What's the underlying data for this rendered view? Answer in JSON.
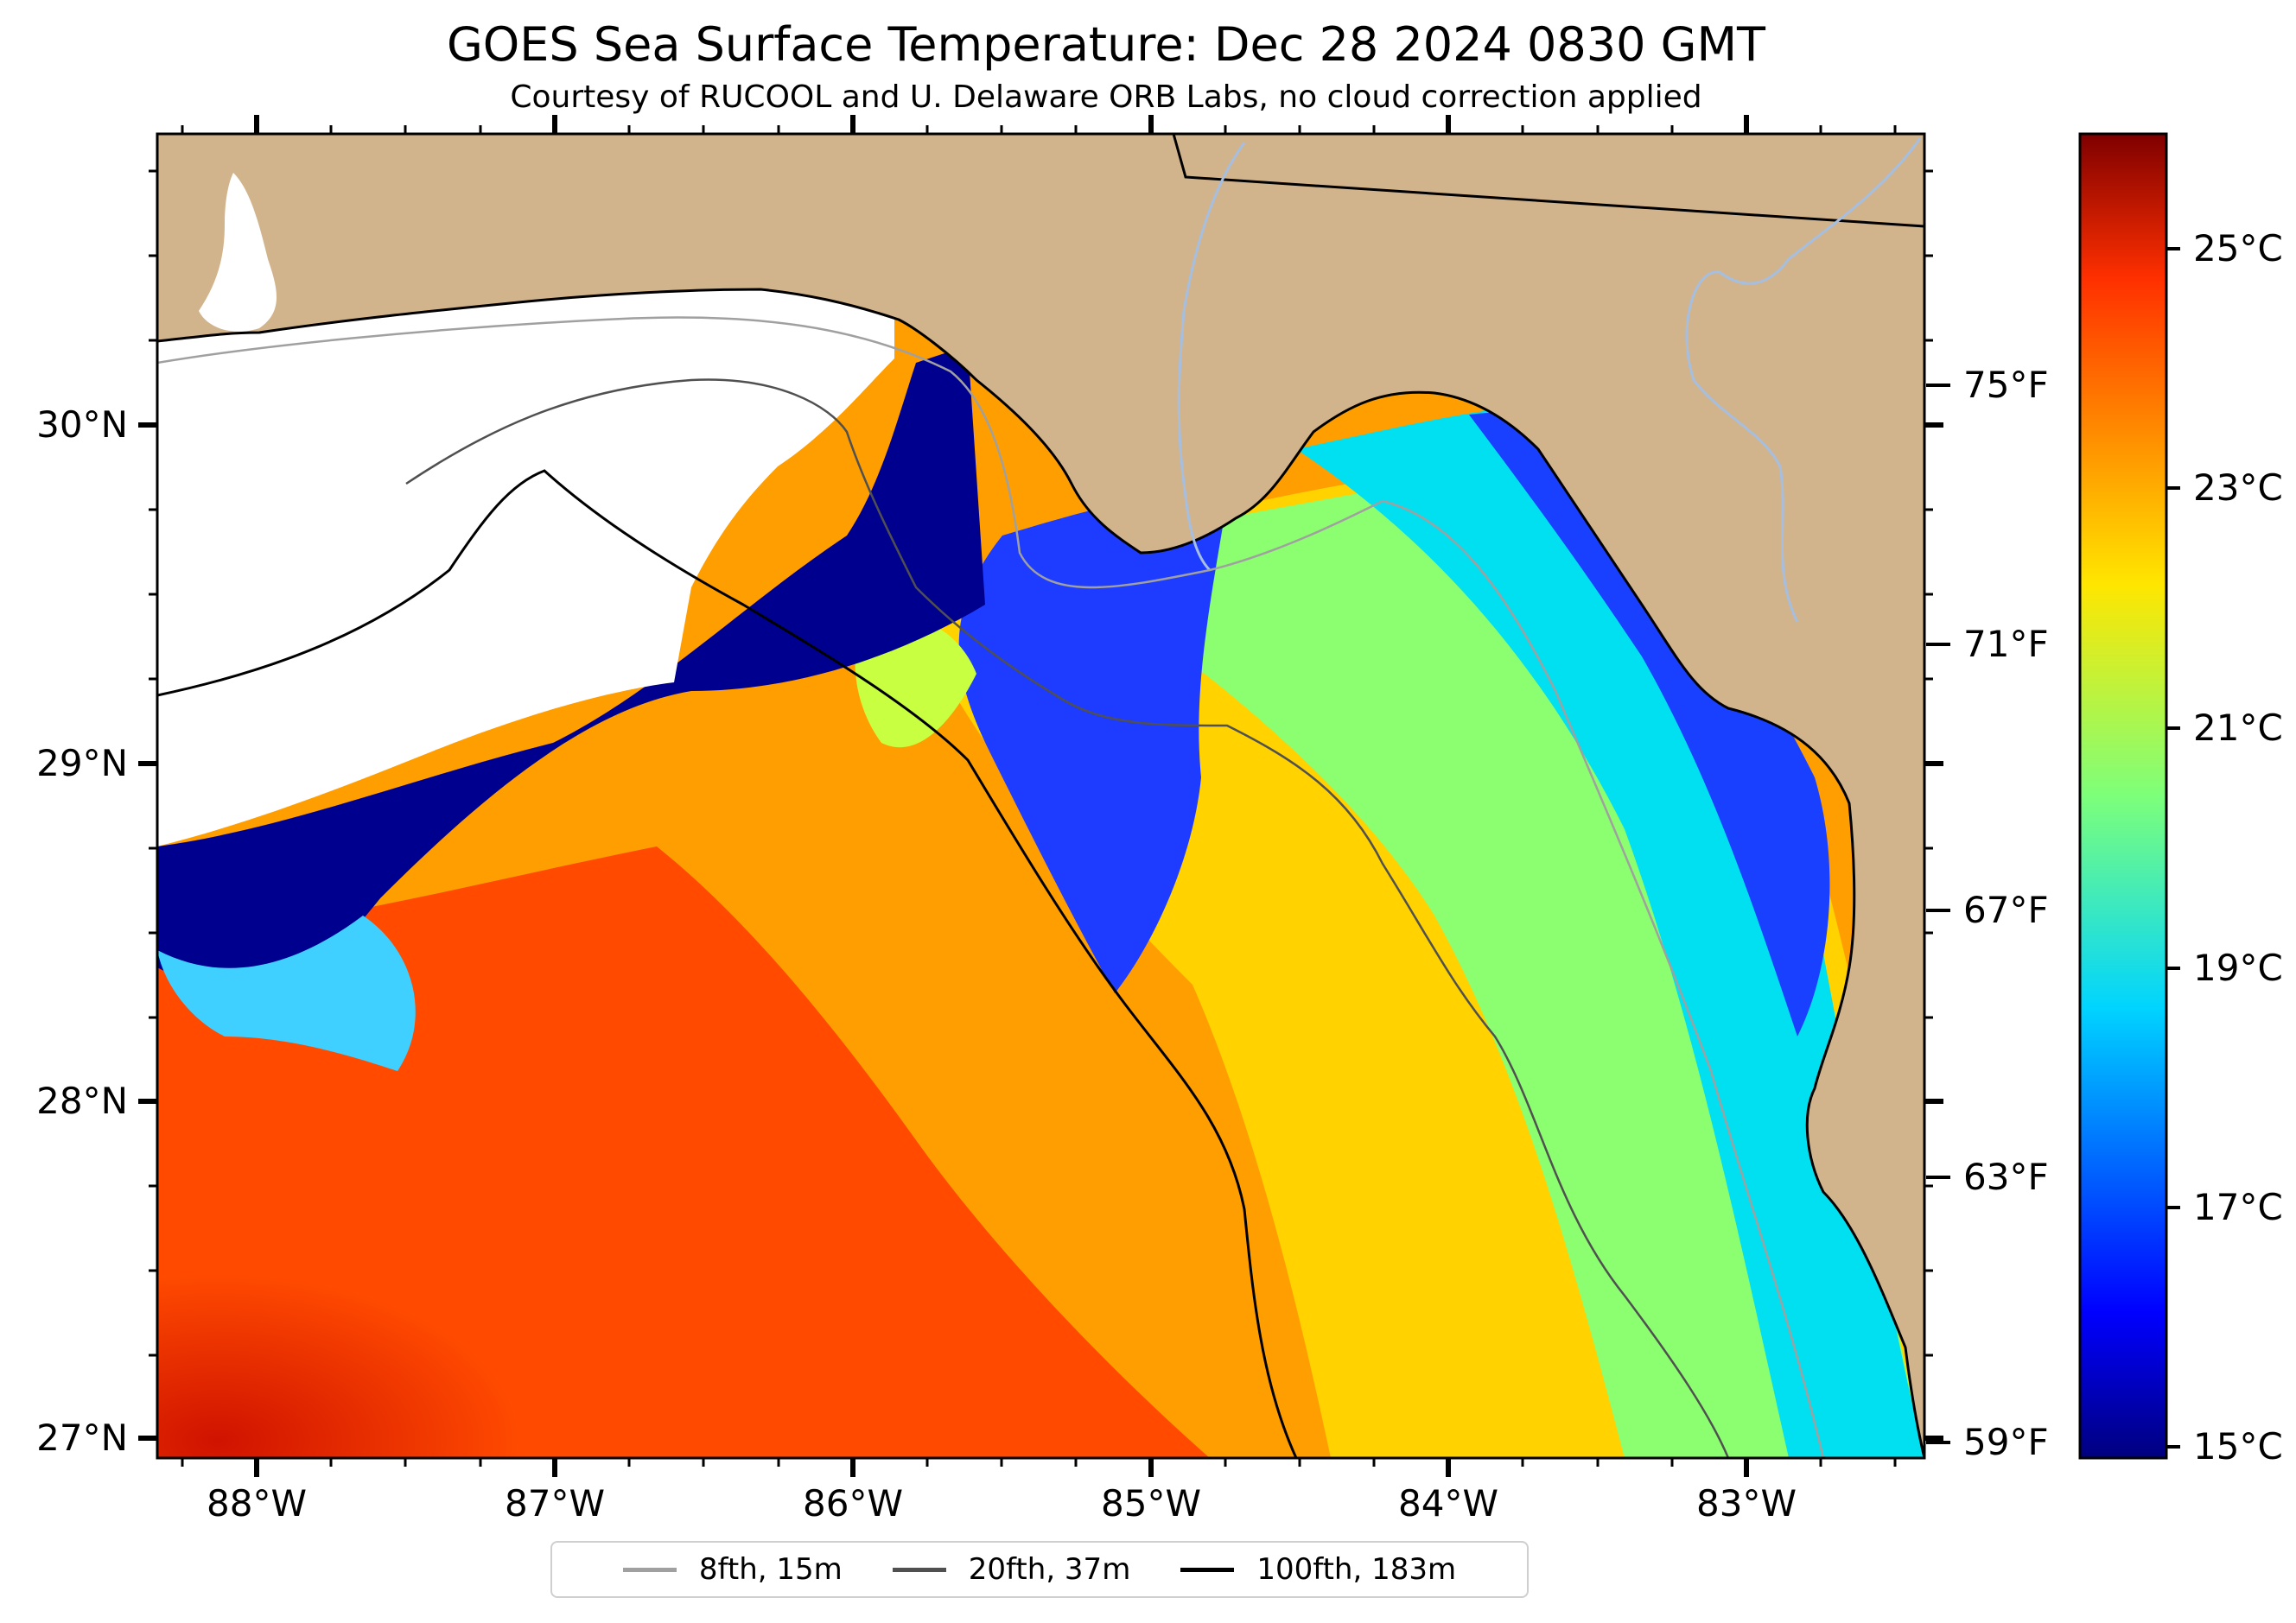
{
  "title": "GOES Sea Surface Temperature: Dec 28 2024 0830 GMT",
  "subtitle": "Courtesy of RUCOOL and U. Delaware ORB Labs, no cloud correction applied",
  "colors": {
    "land": "#d2b48c",
    "no_data": "#ffffff",
    "coastline": "#000000",
    "river": "#a6bedf",
    "contour_8fth": "#a0a0a0",
    "contour_20fth": "#505050",
    "contour_100fth": "#000000",
    "colormap": "jet"
  },
  "axes": {
    "lat_labels": [
      "30°N",
      "29°N",
      "28°N",
      "27°N"
    ],
    "lon_labels": [
      "88°W",
      "87°W",
      "86°W",
      "85°W",
      "84°W",
      "83°W"
    ]
  },
  "colorbar": {
    "fahrenheit_labels": [
      "75°F",
      "71°F",
      "67°F",
      "63°F",
      "59°F"
    ],
    "celsius_labels": [
      "25°C",
      "23°C",
      "21°C",
      "19°C",
      "17°C",
      "15°C"
    ],
    "range_c": [
      14.8,
      26.2
    ]
  },
  "legend": {
    "items": [
      {
        "label": "8fth, 15m",
        "color": "#a0a0a0"
      },
      {
        "label": "20fth, 37m",
        "color": "#505050"
      },
      {
        "label": "100fth, 183m",
        "color": "#000000"
      }
    ]
  }
}
